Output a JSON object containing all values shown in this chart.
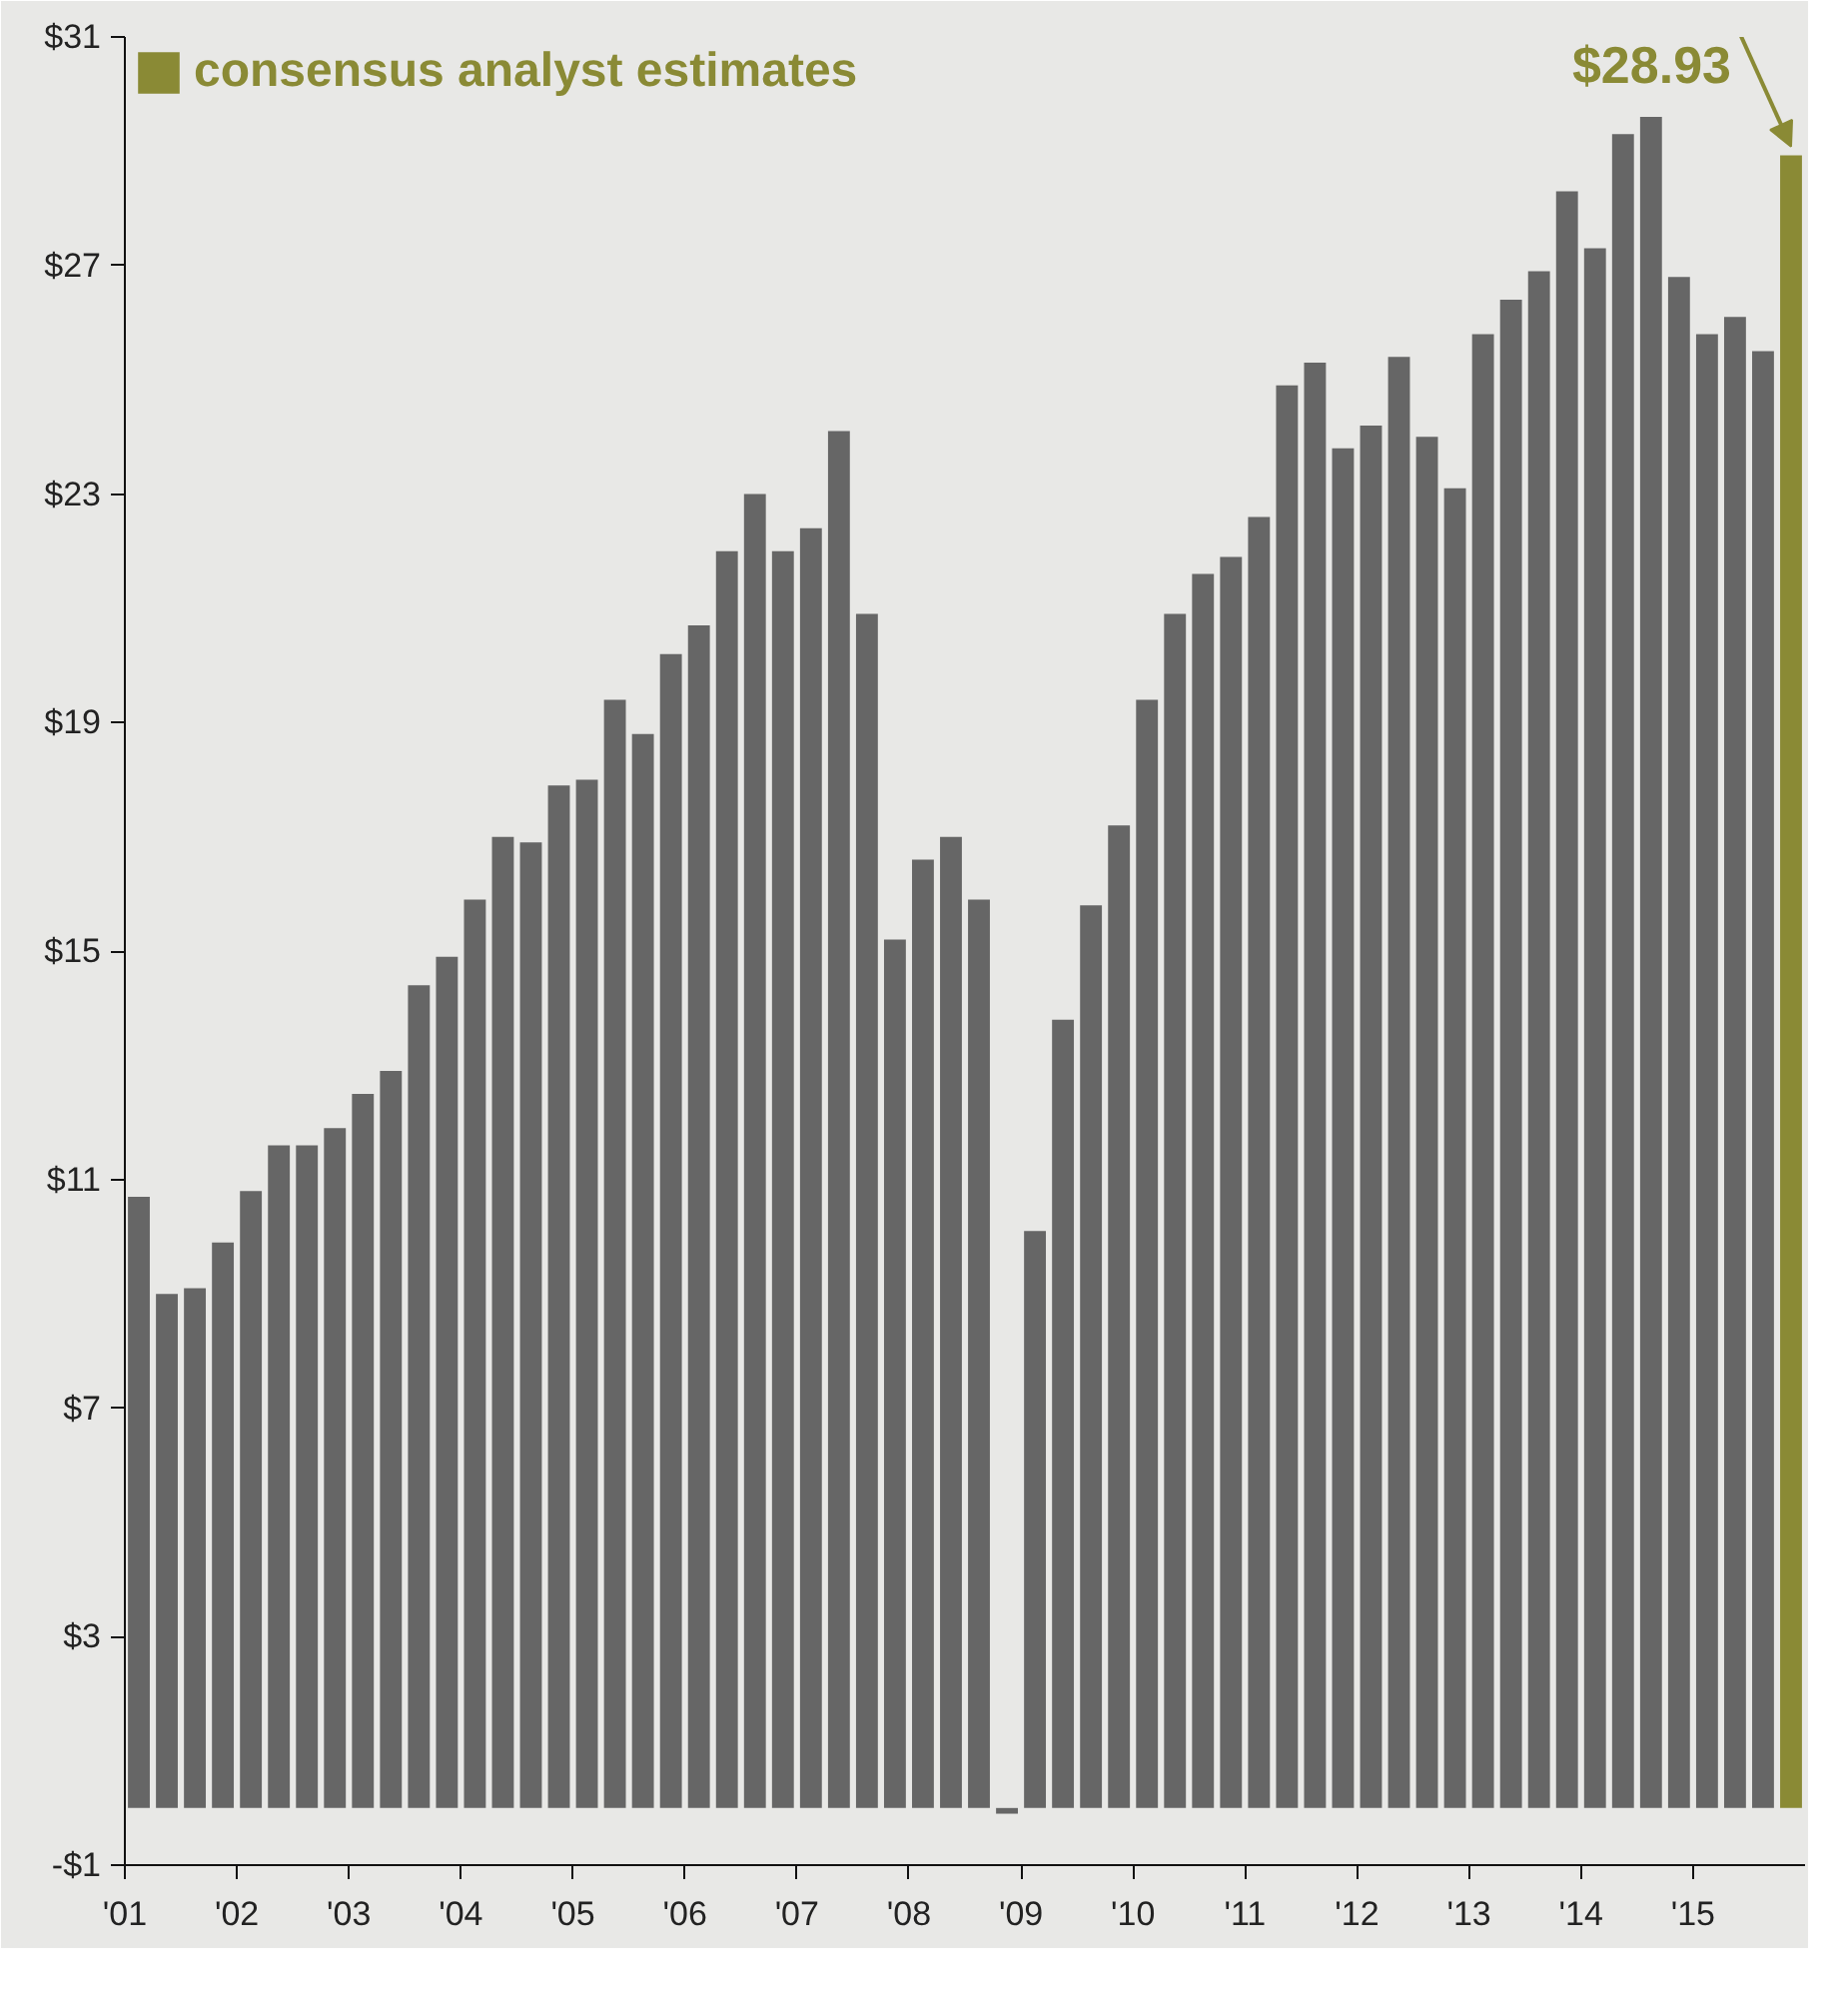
{
  "chart_data": {
    "type": "bar",
    "x": [
      2001.125,
      2001.375,
      2001.625,
      2001.875,
      2002.125,
      2002.375,
      2002.625,
      2002.875,
      2003.125,
      2003.375,
      2003.625,
      2003.875,
      2004.125,
      2004.375,
      2004.625,
      2004.875,
      2005.125,
      2005.375,
      2005.625,
      2005.875,
      2006.125,
      2006.375,
      2006.625,
      2006.875,
      2007.125,
      2007.375,
      2007.625,
      2007.875,
      2008.125,
      2008.375,
      2008.625,
      2008.875,
      2009.125,
      2009.375,
      2009.625,
      2009.875,
      2010.125,
      2010.375,
      2010.625,
      2010.875,
      2011.125,
      2011.375,
      2011.625,
      2011.875,
      2012.125,
      2012.375,
      2012.625,
      2012.875,
      2013.125,
      2013.375,
      2013.625,
      2013.875,
      2014.125,
      2014.375,
      2014.625,
      2014.875,
      2015.125,
      2015.375,
      2015.625,
      2015.875
    ],
    "series": [
      {
        "color": "#666666",
        "values": [
          10.7,
          9.0,
          9.1,
          9.9,
          10.8,
          11.6,
          11.6,
          11.9,
          12.5,
          12.9,
          14.4,
          14.9,
          15.9,
          17.0,
          16.9,
          17.9,
          18.0,
          19.4,
          18.8,
          20.2,
          20.7,
          22.0,
          23.0,
          22.0,
          22.4,
          24.1,
          20.9,
          15.2,
          16.6,
          17.0,
          15.9,
          -0.1,
          10.1,
          13.8,
          15.8,
          17.2,
          19.4,
          20.9,
          21.6,
          21.9,
          22.6,
          24.9,
          25.3,
          23.8,
          24.2,
          25.4,
          24.0,
          23.1,
          25.8,
          26.4,
          26.9,
          28.3,
          27.3,
          29.3,
          29.6,
          26.8,
          25.8,
          26.1,
          25.5,
          null
        ]
      },
      {
        "name": "consensus analyst estimates",
        "color": "#8a8a35",
        "values": [
          null,
          null,
          null,
          null,
          null,
          null,
          null,
          null,
          null,
          null,
          null,
          null,
          null,
          null,
          null,
          null,
          null,
          null,
          null,
          null,
          null,
          null,
          null,
          null,
          null,
          null,
          null,
          null,
          null,
          null,
          null,
          null,
          null,
          null,
          null,
          null,
          null,
          null,
          null,
          null,
          null,
          null,
          null,
          null,
          null,
          null,
          null,
          null,
          null,
          null,
          null,
          null,
          null,
          null,
          null,
          null,
          null,
          null,
          null,
          28.93
        ]
      }
    ],
    "annotations": [
      {
        "text": "$28.93",
        "x": 2015.875,
        "y": 28.93
      }
    ],
    "xlim": [
      2001,
      2016
    ],
    "xticks": [
      {
        "value": 2001,
        "label": "'01"
      },
      {
        "value": 2002,
        "label": "'02"
      },
      {
        "value": 2003,
        "label": "'03"
      },
      {
        "value": 2004,
        "label": "'04"
      },
      {
        "value": 2005,
        "label": "'05"
      },
      {
        "value": 2006,
        "label": "'06"
      },
      {
        "value": 2007,
        "label": "'07"
      },
      {
        "value": 2008,
        "label": "'08"
      },
      {
        "value": 2009,
        "label": "'09"
      },
      {
        "value": 2010,
        "label": "'10"
      },
      {
        "value": 2011,
        "label": "'11"
      },
      {
        "value": 2012,
        "label": "'12"
      },
      {
        "value": 2013,
        "label": "'13"
      },
      {
        "value": 2014,
        "label": "'14"
      },
      {
        "value": 2015,
        "label": "'15"
      }
    ],
    "ylim": [
      -1,
      31
    ],
    "yticks": [
      {
        "value": -1,
        "label": "-$1"
      },
      {
        "value": 3,
        "label": "$3"
      },
      {
        "value": 7,
        "label": "$7"
      },
      {
        "value": 11,
        "label": "$11"
      },
      {
        "value": 15,
        "label": "$15"
      },
      {
        "value": 19,
        "label": "$19"
      },
      {
        "value": 23,
        "label": "$23"
      },
      {
        "value": 27,
        "label": "$27"
      },
      {
        "value": 31,
        "label": "$31"
      }
    ],
    "legend": "top left"
  }
}
